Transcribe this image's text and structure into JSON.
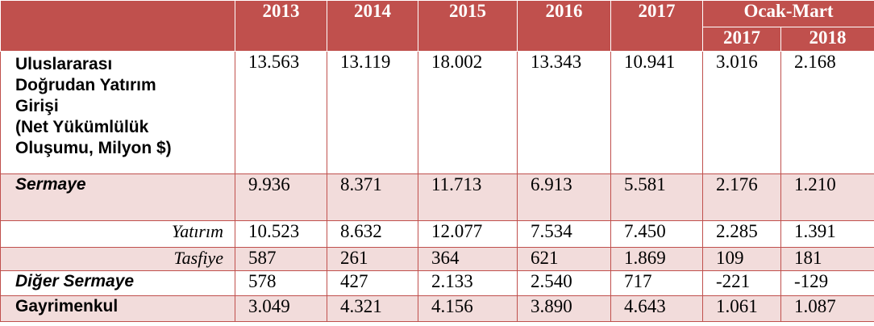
{
  "header": {
    "years": [
      "2013",
      "2014",
      "2015",
      "2016",
      "2017"
    ],
    "period_label": "Ocak-Mart",
    "period_years": [
      "2017",
      "2018"
    ]
  },
  "rows": [
    {
      "label_lines": [
        "Uluslararası",
        "Doğrudan Yatırım",
        "Girişi",
        "(Net Yükümlülük",
        "Oluşumu, Milyon $)"
      ],
      "values": [
        "13.563",
        "13.119",
        "18.002",
        "13.343",
        "10.941",
        "3.016",
        "2.168"
      ]
    },
    {
      "label": "Sermaye",
      "values": [
        "9.936",
        "8.371",
        "11.713",
        "6.913",
        "5.581",
        "2.176",
        "1.210"
      ]
    },
    {
      "label": "Yatırım",
      "values": [
        "10.523",
        "8.632",
        "12.077",
        "7.534",
        "7.450",
        "2.285",
        "1.391"
      ]
    },
    {
      "label": "Tasfiye",
      "values": [
        "587",
        "261",
        "364",
        "621",
        "1.869",
        "109",
        "181"
      ]
    },
    {
      "label": "Diğer Sermaye",
      "values": [
        "578",
        "427",
        "2.133",
        "2.540",
        "717",
        "-221",
        "-129"
      ]
    },
    {
      "label": "Gayrimenkul",
      "values": [
        "3.049",
        "4.321",
        "4.156",
        "3.890",
        "4.643",
        "1.061",
        "1.087"
      ]
    }
  ]
}
